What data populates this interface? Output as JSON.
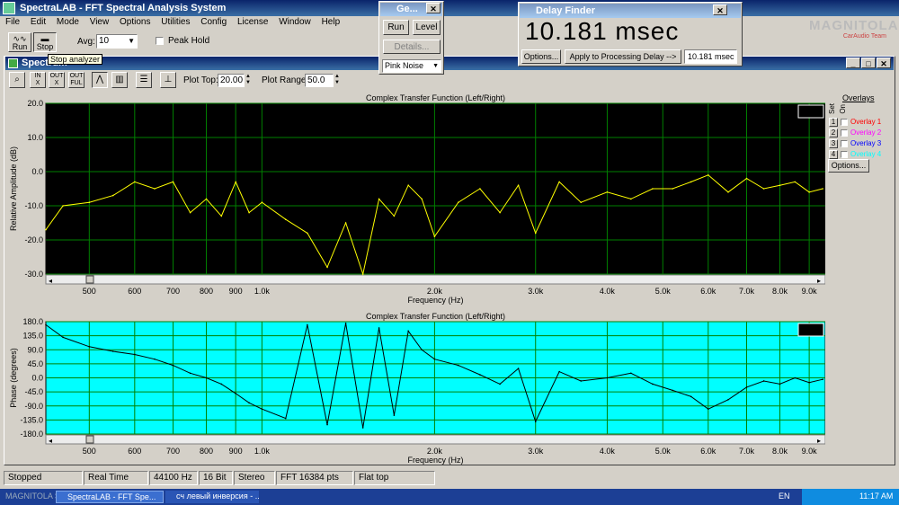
{
  "app": {
    "title": "SpectraLAB - FFT Spectral Analysis System",
    "menu": [
      "File",
      "Edit",
      "Mode",
      "View",
      "Options",
      "Utilities",
      "Config",
      "License",
      "Window",
      "Help"
    ],
    "tooltip": "Stop analyzer",
    "toolbar": {
      "run": "Run",
      "stop": "Stop",
      "avg_label": "Avg:",
      "avg_value": "10",
      "peak_hold": "Peak Hold"
    }
  },
  "generator": {
    "title": "Ge...",
    "run": "Run",
    "level": "Level",
    "details": "Details...",
    "noise": "Pink Noise"
  },
  "delay_finder": {
    "title": "Delay Finder",
    "readout": "10.181 msec",
    "options": "Options...",
    "apply": "Apply to Processing Delay -->",
    "value": "10.181 msec"
  },
  "watermark": {
    "brand": "MAGNITOLA",
    "team": "CarAudio Team"
  },
  "spectrum": {
    "title": "Spectrum",
    "plot_top_label": "Plot Top:",
    "plot_top": "20.00",
    "plot_range_label": "Plot Range:",
    "plot_range": "50.0",
    "overlays_title": "Overlays",
    "set_label": "Set",
    "on_label": "On",
    "overlays": [
      {
        "num": "1",
        "name": "Overlay 1",
        "color": "#ff0000"
      },
      {
        "num": "2",
        "name": "Overlay 2",
        "color": "#ff00ff"
      },
      {
        "num": "3",
        "name": "Overlay 3",
        "color": "#0000ff"
      },
      {
        "num": "4",
        "name": "Overlay 4",
        "color": "#00ffff"
      }
    ],
    "options": "Options..."
  },
  "chart_data": [
    {
      "type": "line",
      "title": "Complex Transfer Function (Left/Right)",
      "xlabel": "Frequency (Hz)",
      "ylabel": "Relative Amplitude (dB)",
      "x_ticks": [
        "500",
        "600",
        "700",
        "800",
        "900",
        "1.0k",
        "2.0k",
        "3.0k",
        "4.0k",
        "5.0k",
        "6.0k",
        "7.0k",
        "8.0k",
        "9.0k"
      ],
      "y_ticks": [
        "20.0",
        "10.0",
        "0.0",
        "-10.0",
        "-20.0",
        "-30.0"
      ],
      "ylim": [
        -30,
        20
      ],
      "background": "#000000",
      "line_color": "#ffff00",
      "series": [
        {
          "x": [
            420,
            450,
            500,
            550,
            600,
            650,
            700,
            750,
            800,
            850,
            900,
            950,
            1000,
            1100,
            1200,
            1300,
            1400,
            1500,
            1600,
            1700,
            1800,
            1900,
            2000,
            2200,
            2400,
            2600,
            2800,
            3000,
            3300,
            3600,
            4000,
            4400,
            4800,
            5200,
            5600,
            6000,
            6500,
            7000,
            7500,
            8000,
            8500,
            9000,
            9500
          ],
          "y": [
            -17,
            -10,
            -9,
            -7,
            -3,
            -5,
            -3,
            -12,
            -8,
            -13,
            -3,
            -12,
            -9,
            -14,
            -18,
            -28,
            -15,
            -30,
            -8,
            -13,
            -4,
            -8,
            -19,
            -9,
            -5,
            -12,
            -4,
            -18,
            -3,
            -9,
            -6,
            -8,
            -5,
            -5,
            -3,
            -1,
            -6,
            -2,
            -5,
            -4,
            -3,
            -6,
            -5
          ]
        }
      ]
    },
    {
      "type": "line",
      "title": "Complex Transfer Function (Left/Right)",
      "xlabel": "Frequency (Hz)",
      "ylabel": "Phase (degrees)",
      "x_ticks": [
        "500",
        "600",
        "700",
        "800",
        "900",
        "1.0k",
        "2.0k",
        "3.0k",
        "4.0k",
        "5.0k",
        "6.0k",
        "7.0k",
        "8.0k",
        "9.0k"
      ],
      "y_ticks": [
        "180.0",
        "135.0",
        "90.0",
        "45.0",
        "0.0",
        "-45.0",
        "-90.0",
        "-135.0",
        "-180.0"
      ],
      "ylim": [
        -180,
        180
      ],
      "background": "#00ffff",
      "line_color": "#000000",
      "series": [
        {
          "x": [
            420,
            450,
            500,
            550,
            600,
            650,
            700,
            750,
            800,
            850,
            900,
            950,
            1000,
            1100,
            1200,
            1300,
            1400,
            1500,
            1600,
            1700,
            1800,
            1900,
            2000,
            2200,
            2400,
            2600,
            2800,
            3000,
            3300,
            3600,
            4000,
            4400,
            4800,
            5200,
            5600,
            6000,
            6500,
            7000,
            7500,
            8000,
            8500,
            9000,
            9500
          ],
          "y": [
            170,
            130,
            100,
            85,
            75,
            60,
            40,
            15,
            0,
            -20,
            -50,
            -80,
            -100,
            -130,
            170,
            -150,
            175,
            -160,
            160,
            -120,
            150,
            90,
            60,
            40,
            10,
            -20,
            30,
            -140,
            20,
            -10,
            0,
            15,
            -20,
            -40,
            -60,
            -100,
            -70,
            -30,
            -10,
            -20,
            0,
            -15,
            -5
          ]
        }
      ]
    }
  ],
  "status": [
    "Stopped",
    "Real Time",
    "44100 Hz",
    "16 Bit",
    "Stereo",
    "FFT 16384 pts",
    "Flat top"
  ],
  "taskbar": {
    "label": "MAGNITOLA SPECTRA... NET",
    "item1": "SpectraLAB - FFT Spe...",
    "item2": "сч левый инверсия - ...",
    "lang": "EN",
    "time": "11:17 AM"
  }
}
